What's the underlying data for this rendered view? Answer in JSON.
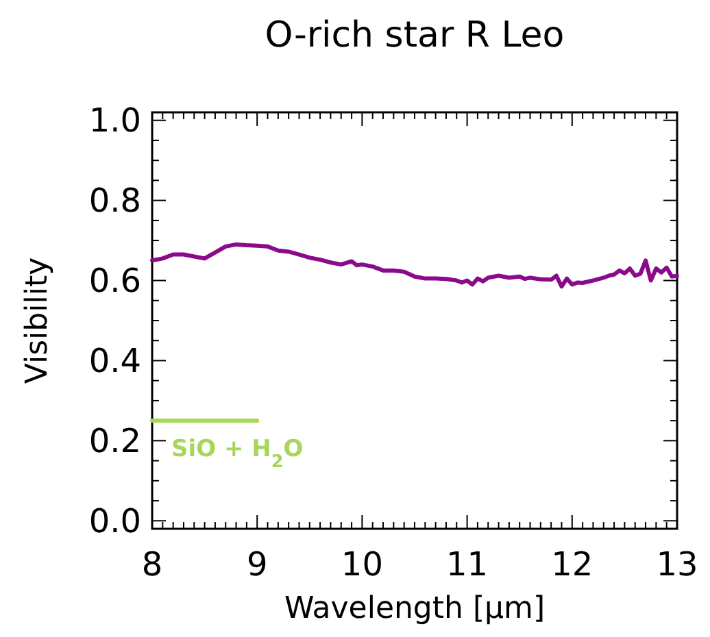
{
  "chart_data": {
    "type": "line",
    "title": "O-rich star R Leo",
    "xlabel": "Wavelength [μm]",
    "ylabel": "Visibility",
    "xlim": [
      8,
      13
    ],
    "ylim": [
      -0.02,
      1.02
    ],
    "xticks": [
      8,
      {
        "value": 8.1,
        "label": null
      },
      {
        "value": 8.2,
        "label": null
      },
      {
        "value": 8.3,
        "label": null
      },
      {
        "value": 8.4,
        "label": null
      },
      {
        "value": 8.5,
        "label": null
      },
      {
        "value": 8.6,
        "label": null
      },
      {
        "value": 8.7,
        "label": null
      },
      {
        "value": 8.8,
        "label": null
      },
      {
        "value": 8.9,
        "label": null
      },
      9,
      {
        "value": 9.1,
        "label": null
      },
      {
        "value": 9.2,
        "label": null
      },
      {
        "value": 9.3,
        "label": null
      },
      {
        "value": 9.4,
        "label": null
      },
      {
        "value": 9.5,
        "label": null
      },
      {
        "value": 9.6,
        "label": null
      },
      {
        "value": 9.7,
        "label": null
      },
      {
        "value": 9.8,
        "label": null
      },
      {
        "value": 9.9,
        "label": null
      },
      10,
      {
        "value": 10.1,
        "label": null
      },
      {
        "value": 10.2,
        "label": null
      },
      {
        "value": 10.3,
        "label": null
      },
      {
        "value": 10.4,
        "label": null
      },
      {
        "value": 10.5,
        "label": null
      },
      {
        "value": 10.6,
        "label": null
      },
      {
        "value": 10.7,
        "label": null
      },
      {
        "value": 10.8,
        "label": null
      },
      {
        "value": 10.9,
        "label": null
      },
      11,
      {
        "value": 11.1,
        "label": null
      },
      {
        "value": 11.2,
        "label": null
      },
      {
        "value": 11.3,
        "label": null
      },
      {
        "value": 11.4,
        "label": null
      },
      {
        "value": 11.5,
        "label": null
      },
      {
        "value": 11.6,
        "label": null
      },
      {
        "value": 11.7,
        "label": null
      },
      {
        "value": 11.8,
        "label": null
      },
      {
        "value": 11.9,
        "label": null
      },
      12,
      {
        "value": 12.1,
        "label": null
      },
      {
        "value": 12.2,
        "label": null
      },
      {
        "value": 12.3,
        "label": null
      },
      {
        "value": 12.4,
        "label": null
      },
      {
        "value": 12.5,
        "label": null
      },
      {
        "value": 12.6,
        "label": null
      },
      {
        "value": 12.7,
        "label": null
      },
      {
        "value": 12.8,
        "label": null
      },
      {
        "value": 12.9,
        "label": null
      },
      13
    ],
    "yticks": [
      {
        "value": 0,
        "label": "0.0"
      },
      {
        "value": 0.05,
        "label": null
      },
      {
        "value": 0.1,
        "label": null
      },
      {
        "value": 0.15,
        "label": null
      },
      0.2,
      {
        "value": 0.25,
        "label": null
      },
      {
        "value": 0.3,
        "label": null
      },
      {
        "value": 0.35,
        "label": null
      },
      0.4,
      {
        "value": 0.45,
        "label": null
      },
      {
        "value": 0.5,
        "label": null
      },
      {
        "value": 0.55,
        "label": null
      },
      0.6,
      {
        "value": 0.65,
        "label": null
      },
      {
        "value": 0.7,
        "label": null
      },
      {
        "value": 0.75,
        "label": null
      },
      0.8,
      {
        "value": 0.85,
        "label": null
      },
      {
        "value": 0.9,
        "label": null
      },
      {
        "value": 0.95,
        "label": null
      },
      {
        "value": 1,
        "label": "1.0"
      }
    ],
    "grid": false,
    "marker": "none",
    "line_style": "solid",
    "series": [
      {
        "color": "#8b0a8b",
        "x": [
          8,
          8.1,
          8.2,
          8.3,
          8.4,
          8.5,
          8.6,
          8.7,
          8.8,
          8.9,
          9.0,
          9.1,
          9.2,
          9.3,
          9.4,
          9.5,
          9.6,
          9.7,
          9.8,
          9.9,
          9.95,
          10.0,
          10.1,
          10.2,
          10.3,
          10.4,
          10.5,
          10.6,
          10.7,
          10.8,
          10.9,
          10.95,
          11.0,
          11.05,
          11.1,
          11.15,
          11.2,
          11.3,
          11.4,
          11.5,
          11.55,
          11.6,
          11.7,
          11.8,
          11.85,
          11.9,
          11.95,
          12.0,
          12.05,
          12.1,
          12.2,
          12.3,
          12.35,
          12.4,
          12.45,
          12.5,
          12.55,
          12.6,
          12.65,
          12.7,
          12.75,
          12.8,
          12.85,
          12.9,
          12.95,
          13.0
        ],
        "values": [
          0.65,
          0.655,
          0.665,
          0.665,
          0.66,
          0.655,
          0.67,
          0.685,
          0.69,
          0.688,
          0.687,
          0.685,
          0.675,
          0.672,
          0.665,
          0.657,
          0.652,
          0.645,
          0.64,
          0.648,
          0.638,
          0.64,
          0.635,
          0.625,
          0.625,
          0.622,
          0.61,
          0.605,
          0.605,
          0.604,
          0.6,
          0.595,
          0.6,
          0.59,
          0.605,
          0.598,
          0.607,
          0.612,
          0.607,
          0.61,
          0.604,
          0.607,
          0.603,
          0.602,
          0.612,
          0.585,
          0.605,
          0.59,
          0.595,
          0.594,
          0.6,
          0.607,
          0.612,
          0.615,
          0.625,
          0.618,
          0.63,
          0.612,
          0.617,
          0.65,
          0.6,
          0.63,
          0.62,
          0.632,
          0.61,
          0.612
        ]
      },
      {
        "name": "SiO + H$_{2}$O",
        "color": "#a6d65a",
        "x": [
          8,
          9
        ],
        "values": [
          0.25,
          0.25
        ]
      }
    ]
  }
}
